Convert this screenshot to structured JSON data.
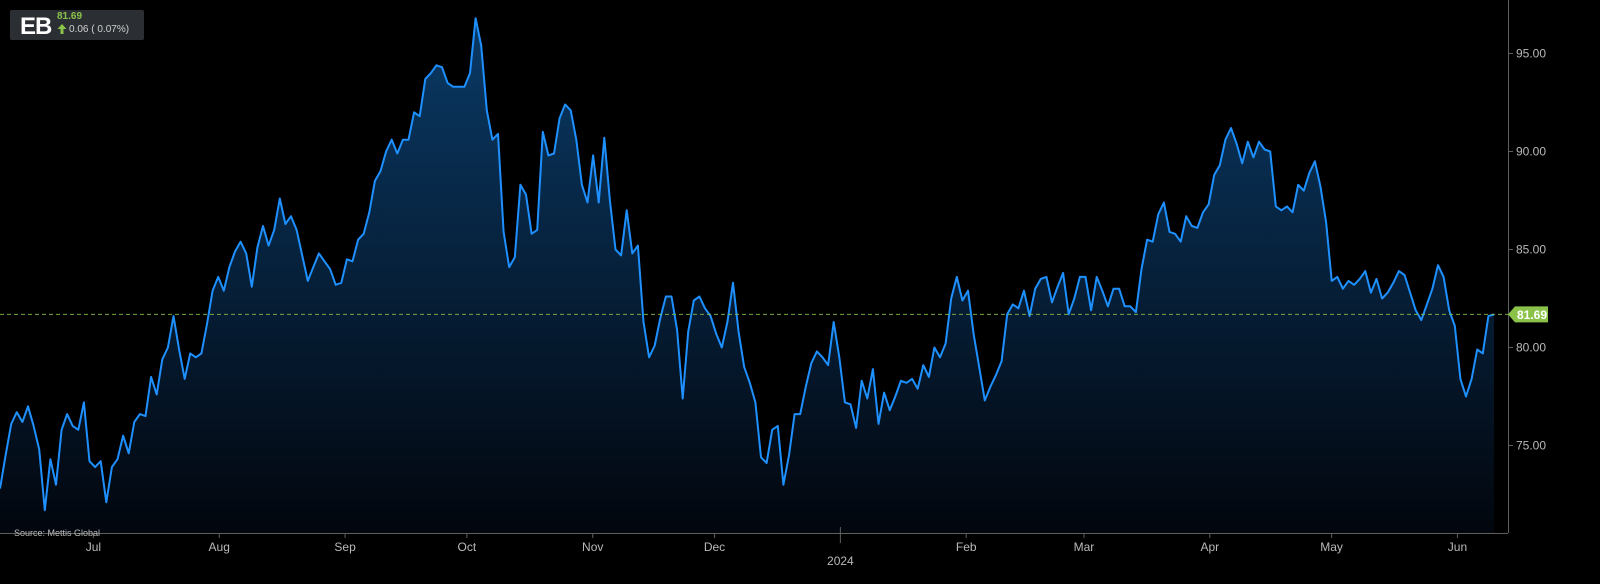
{
  "badge": {
    "ticker": "EB",
    "price": "81.69",
    "change": "0.06 ( 0.07%)",
    "arrow_icon": "up-arrow-icon",
    "up_color": "#8bc34a"
  },
  "source": "Source: Mettis Global",
  "colors": {
    "line": "#1e90ff",
    "fill_top": "#0a3a66",
    "fill_bottom": "#02060d",
    "last_value_line": "#8bc34a",
    "axis": "#5f5f5f",
    "background": "#000000"
  },
  "chart_data": {
    "type": "area",
    "title": "",
    "xlabel": "",
    "ylabel": "",
    "ylim": [
      70.5,
      97.5
    ],
    "y_ticks": [
      "75.00",
      "80.00",
      "85.00",
      "90.00",
      "95.00"
    ],
    "x_tick_labels": [
      "Jul",
      "Aug",
      "Sep",
      "Oct",
      "Nov",
      "Dec",
      "Feb",
      "Mar",
      "Apr",
      "May",
      "Jun"
    ],
    "x_year_label": "2024",
    "last_value": 81.69,
    "last_value_label": "81.69",
    "grid": false,
    "legend": "none",
    "x_start": "2023-06-08",
    "x_end": "2024-06-10",
    "series": [
      {
        "values": [
          72.8,
          74.5,
          76.1,
          76.7,
          76.2,
          77.0,
          76.0,
          74.8,
          71.7,
          74.3,
          73.0,
          75.8,
          76.6,
          76.0,
          75.8,
          77.2,
          74.2,
          73.9,
          74.2,
          72.1,
          73.9,
          74.3,
          75.5,
          74.6,
          76.2,
          76.6,
          76.5,
          78.5,
          77.6,
          79.4,
          80.0,
          81.6,
          79.9,
          78.4,
          79.7,
          79.5,
          79.7,
          81.2,
          82.9,
          83.6,
          82.9,
          84.1,
          84.9,
          85.4,
          84.8,
          83.1,
          85.1,
          86.2,
          85.2,
          86.0,
          87.6,
          86.3,
          86.7,
          86.0,
          84.7,
          83.4,
          84.1,
          84.8,
          84.4,
          84.0,
          83.2,
          83.3,
          84.5,
          84.4,
          85.5,
          85.8,
          86.9,
          88.5,
          89.0,
          90.0,
          90.6,
          89.9,
          90.6,
          90.6,
          92.0,
          91.8,
          93.7,
          94.0,
          94.4,
          94.3,
          93.5,
          93.3,
          93.3,
          93.3,
          94.0,
          96.8,
          95.4,
          92.1,
          90.6,
          90.9,
          85.9,
          84.1,
          84.6,
          88.3,
          87.8,
          85.8,
          86.0,
          91.0,
          89.8,
          89.9,
          91.7,
          92.4,
          92.1,
          90.6,
          88.3,
          87.4,
          89.8,
          87.4,
          90.7,
          87.5,
          85.0,
          84.7,
          87.0,
          84.8,
          85.2,
          81.3,
          79.5,
          80.1,
          81.5,
          82.6,
          82.6,
          80.9,
          77.4,
          80.8,
          82.4,
          82.6,
          82.0,
          81.6,
          80.7,
          80.0,
          81.3,
          83.3,
          80.8,
          79.0,
          78.2,
          77.2,
          74.4,
          74.1,
          75.8,
          76.0,
          73.0,
          74.5,
          76.6,
          76.6,
          78.0,
          79.2,
          79.8,
          79.5,
          79.1,
          81.3,
          79.5,
          77.2,
          77.1,
          75.9,
          78.3,
          77.4,
          78.9,
          76.1,
          77.7,
          76.8,
          77.5,
          78.3,
          78.2,
          78.4,
          77.9,
          79.1,
          78.5,
          80.0,
          79.5,
          80.2,
          82.5,
          83.6,
          82.4,
          82.9,
          80.7,
          79.0,
          77.3,
          78.0,
          78.6,
          79.3,
          81.7,
          82.2,
          82.0,
          82.9,
          81.6,
          83.0,
          83.5,
          83.6,
          82.3,
          83.1,
          83.8,
          81.7,
          82.5,
          83.6,
          83.6,
          81.9,
          83.6,
          82.9,
          82.1,
          83.0,
          83.0,
          82.1,
          82.1,
          81.8,
          84.0,
          85.5,
          85.4,
          86.8,
          87.4,
          85.9,
          85.8,
          85.4,
          86.7,
          86.2,
          86.1,
          86.9,
          87.3,
          88.8,
          89.3,
          90.6,
          91.2,
          90.4,
          89.4,
          90.5,
          89.7,
          90.5,
          90.1,
          90.0,
          87.2,
          87.0,
          87.2,
          86.9,
          88.3,
          88.0,
          88.9,
          89.5,
          88.2,
          86.4,
          83.4,
          83.6,
          83.0,
          83.4,
          83.2,
          83.5,
          83.9,
          82.8,
          83.5,
          82.5,
          82.8,
          83.3,
          83.9,
          83.7,
          82.8,
          81.9,
          81.4,
          82.2,
          83.0,
          84.2,
          83.6,
          81.9,
          81.1,
          78.4,
          77.5,
          78.4,
          79.9,
          79.7,
          81.6,
          81.69
        ]
      }
    ]
  }
}
